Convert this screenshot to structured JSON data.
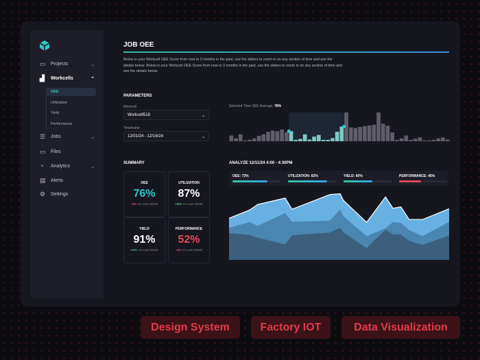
{
  "sidebar": {
    "items": [
      {
        "label": "Projects",
        "icon": "folder-icon",
        "expandable": true
      },
      {
        "label": "Workcells",
        "icon": "bar-chart-icon",
        "expanded": true,
        "children": [
          "OEE",
          "Utilization",
          "Yield",
          "Performance"
        ],
        "active_child": "OEE"
      },
      {
        "label": "Jobs",
        "icon": "list-chart-icon",
        "expandable": true
      },
      {
        "label": "Files",
        "icon": "folder-icon"
      },
      {
        "label": "Analytics",
        "icon": "pie-chart-icon",
        "expandable": true
      },
      {
        "label": "Alerts",
        "icon": "calendar-icon"
      },
      {
        "label": "Settings",
        "icon": "gear-icon"
      }
    ]
  },
  "header": {
    "title": "JOB OEE",
    "description": "Below is your Workcell OEE Score from now to 3 months in the past, use the sliders to zoom in on any section of time and see the details below. Below is your Workcell OEE Score from now to 3 months in the past, use the sliders to zoom in on any section of time and see the details below."
  },
  "parameters": {
    "title": "PARAMETERS",
    "workcell_label": "Workcell",
    "workcell_value": "Workcell518",
    "timeframe_label": "Timeframe",
    "timeframe_value": "12/01/24 - 12/16/24"
  },
  "overview": {
    "avg_label": "Selected Time OEE Average:",
    "avg_value": "78%"
  },
  "summary": {
    "title": "SUMMARY",
    "cards": [
      {
        "label": "OEE",
        "value": "76%",
        "delta": "-4%",
        "delta_text": "Vs Last Week",
        "value_color": "#2fc7c8",
        "delta_color": "#e24a5a"
      },
      {
        "label": "UTILIZATION",
        "value": "87%",
        "delta": "+9%",
        "delta_text": "Vs Last Week",
        "value_color": "#ffffff",
        "delta_color": "#3fd17a"
      },
      {
        "label": "YIELD",
        "value": "91%",
        "delta": "+4%",
        "delta_text": "Vs Last Week",
        "value_color": "#ffffff",
        "delta_color": "#3fd17a"
      },
      {
        "label": "PERFORMANCE",
        "value": "52%",
        "delta": "-4%",
        "delta_text": "Vs Last Week",
        "value_color": "#e24a5a",
        "delta_color": "#e24a5a"
      }
    ]
  },
  "analyze": {
    "title": "ANALYZE 12/11/24 4:00 - 4:30PM",
    "metrics": [
      {
        "label": "OEE: 73%",
        "value": 73,
        "color": "#2fc7a0"
      },
      {
        "label": "UTILIZATION: 82%",
        "value": 82,
        "color": "#2fc7a0"
      },
      {
        "label": "YIELD: 60%",
        "value": 60,
        "color": "#2fc7a0"
      },
      {
        "label": "PERFORMANCE: 45%",
        "value": 45,
        "color": "#e24a5a"
      }
    ]
  },
  "chart_data": [
    {
      "type": "bar",
      "title": "",
      "values": [
        20,
        10,
        24,
        3,
        5,
        10,
        19,
        24,
        33,
        37,
        35,
        41,
        31,
        35,
        5,
        8,
        24,
        6,
        16,
        22,
        5,
        5,
        11,
        33,
        51,
        100,
        48,
        46,
        50,
        53,
        55,
        57,
        100,
        61,
        54,
        31,
        5,
        10,
        20,
        5,
        9,
        13,
        3,
        3,
        5,
        10,
        13,
        6
      ],
      "selected_range": [
        13,
        24
      ],
      "colors": {
        "bar": "#5e5d68",
        "selected": "#7fc8c4",
        "handle": "#2fc7c8"
      }
    },
    {
      "type": "area",
      "title": "",
      "series": [
        {
          "values": [
            175,
            210,
            233,
            260,
            213,
            275,
            278,
            250,
            158,
            265,
            217,
            223,
            170,
            170,
            215
          ],
          "color": "#67b1e2"
        },
        {
          "values": [
            135,
            159,
            143,
            197,
            160,
            165,
            212,
            183,
            100,
            133,
            159,
            155,
            125,
            100,
            160
          ],
          "color": "#4a86b0"
        },
        {
          "values": [
            112,
            105,
            93,
            65,
            103,
            115,
            135,
            115,
            50,
            127,
            107,
            107,
            80,
            63,
            103
          ],
          "color": "#3b5f7d"
        }
      ],
      "x": [
        0,
        9.4,
        13,
        25.5,
        28.6,
        45.8,
        50.5,
        52,
        62.5,
        71.1,
        74.5,
        78.1,
        81.8,
        88,
        100
      ]
    }
  ],
  "tags": [
    "Design System",
    "Factory IOT",
    "Data Visualization"
  ]
}
